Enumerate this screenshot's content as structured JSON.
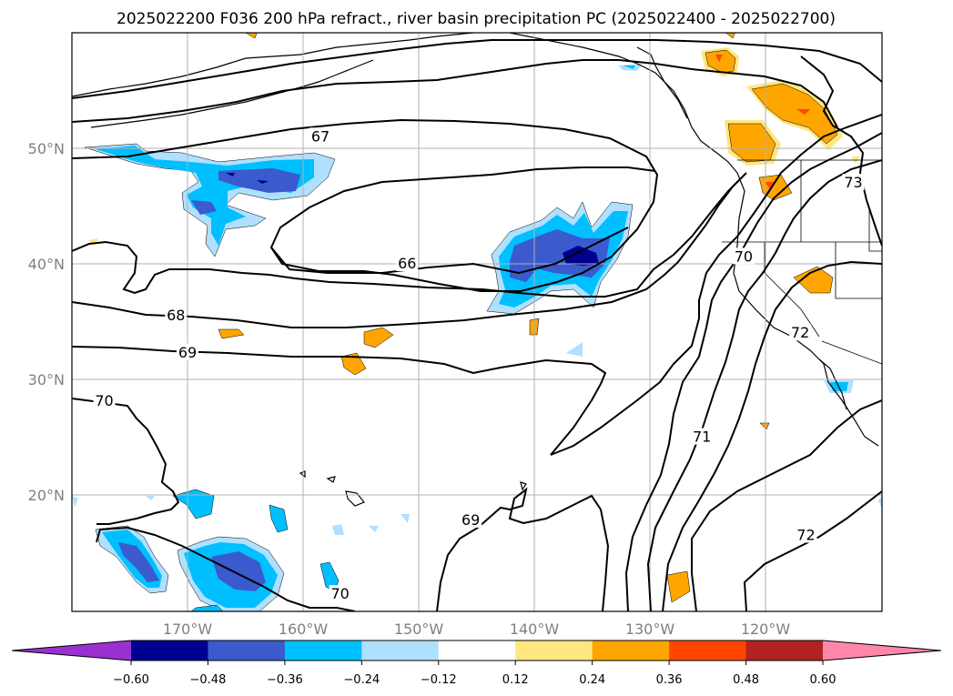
{
  "title": "2025022200 F036 200 hPa refract., river basin precipitation PC (2025022400 - 2025022700)",
  "map": {
    "lon_labels": [
      "170°W",
      "160°W",
      "150°W",
      "140°W",
      "130°W",
      "120°W"
    ],
    "lat_labels": [
      "50°N",
      "40°N",
      "30°N",
      "20°N"
    ],
    "contour_labels": [
      {
        "value": "67",
        "lon": -158.5,
        "lat": 51.0
      },
      {
        "value": "66",
        "lon": -151.0,
        "lat": 40.0
      },
      {
        "value": "68",
        "lon": -171.0,
        "lat": 35.5
      },
      {
        "value": "69",
        "lon": -170.0,
        "lat": 32.3
      },
      {
        "value": "70",
        "lon": -177.2,
        "lat": 28.1
      },
      {
        "value": "70",
        "lon": -121.9,
        "lat": 40.6
      },
      {
        "value": "72",
        "lon": -117.0,
        "lat": 34.0
      },
      {
        "value": "73",
        "lon": -112.4,
        "lat": 47.0
      },
      {
        "value": "71",
        "lon": -125.5,
        "lat": 25.0
      },
      {
        "value": "69",
        "lon": -145.5,
        "lat": 17.8
      },
      {
        "value": "72",
        "lon": -116.5,
        "lat": 16.5
      },
      {
        "value": "70",
        "lon": -156.8,
        "lat": 11.4
      }
    ]
  },
  "colorbar": {
    "tick_labels": [
      "−0.60",
      "−0.48",
      "−0.36",
      "−0.24",
      "−0.12",
      "0.12",
      "0.24",
      "0.36",
      "0.48",
      "0.60"
    ],
    "levels": [
      -0.6,
      -0.48,
      -0.36,
      -0.24,
      -0.12,
      0.12,
      0.24,
      0.36,
      0.48,
      0.6
    ],
    "colors": [
      "#9b30d0",
      "#000090",
      "#3a5acd",
      "#00bfff",
      "#b0e0ff",
      "#ffffff",
      "#ffe680",
      "#ffa500",
      "#ff4500",
      "#b22222",
      "#ff88aa"
    ]
  }
}
